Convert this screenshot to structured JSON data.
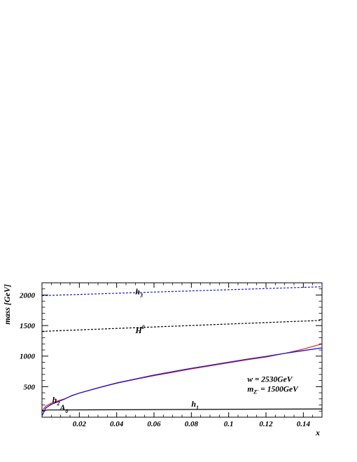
{
  "chart_data": {
    "type": "line",
    "xlabel": "x",
    "ylabel": "mass [GeV]",
    "xlim": [
      0,
      0.15
    ],
    "ylim": [
      0,
      2200
    ],
    "x_ticks": [
      0.02,
      0.04,
      0.06,
      0.08,
      0.1,
      0.12,
      0.14
    ],
    "x_tick_labels": [
      "0.02",
      "0.04",
      "0.06",
      "0.08",
      "0.1",
      "0.12",
      "0.14"
    ],
    "y_ticks": [
      500,
      1000,
      1500,
      2000
    ],
    "y_tick_labels": [
      "500",
      "1000",
      "1500",
      "2000"
    ],
    "grid": false,
    "series": [
      {
        "name": "h_3",
        "label_main": "h",
        "label_sub": "3",
        "color": "#1a1ad6",
        "dash": true,
        "x": [
          0.0,
          0.15
        ],
        "y": [
          1990,
          2135
        ],
        "label_at": [
          0.05,
          2010
        ]
      },
      {
        "name": "H^0",
        "label_main": "H",
        "label_sup": "0",
        "color": "#000000",
        "dash": true,
        "x": [
          0.0,
          0.15
        ],
        "y": [
          1405,
          1585
        ],
        "label_at": [
          0.05,
          1375
        ]
      },
      {
        "name": "h_2",
        "label_main": "h",
        "label_sub": "2",
        "color": "#1a1ad6",
        "dash": false,
        "x": [
          0.0,
          0.002,
          0.005,
          0.008,
          0.012,
          0.016,
          0.02,
          0.03,
          0.04,
          0.05,
          0.06,
          0.07,
          0.08,
          0.09,
          0.1,
          0.11,
          0.12,
          0.13,
          0.14,
          0.15
        ],
        "y": [
          20,
          150,
          210,
          245,
          295,
          355,
          395,
          480,
          560,
          625,
          690,
          745,
          800,
          850,
          900,
          950,
          995,
          1045,
          1090,
          1135
        ],
        "label_at": [
          0.0055,
          240
        ]
      },
      {
        "name": "A_0",
        "label_main": "A",
        "label_sub": "0",
        "color": "#e8201a",
        "dash": false,
        "x": [
          0.0,
          0.002,
          0.005,
          0.008,
          0.012,
          0.016,
          0.02,
          0.03,
          0.04,
          0.05,
          0.06,
          0.07,
          0.08,
          0.09,
          0.1,
          0.11,
          0.12,
          0.13,
          0.14,
          0.15
        ],
        "y": [
          100,
          180,
          230,
          262,
          300,
          350,
          395,
          480,
          555,
          620,
          680,
          735,
          790,
          840,
          890,
          940,
          985,
          1045,
          1115,
          1200
        ],
        "label_at": [
          0.0095,
          115
        ]
      },
      {
        "name": "h_1",
        "label_main": "h",
        "label_sub": "1",
        "color": "#000000",
        "dash": false,
        "x": [
          0.0,
          0.003,
          0.15
        ],
        "y": [
          105,
          118,
          135
        ],
        "label_at": [
          0.08,
          170
        ]
      }
    ],
    "annotations": [
      {
        "text": "w = 2530GeV",
        "at": [
          0.11,
          580
        ]
      },
      {
        "text_main": "m",
        "text_sub": "Z'",
        "text_rest": " = 1500GeV",
        "at": [
          0.11,
          420
        ]
      }
    ]
  }
}
